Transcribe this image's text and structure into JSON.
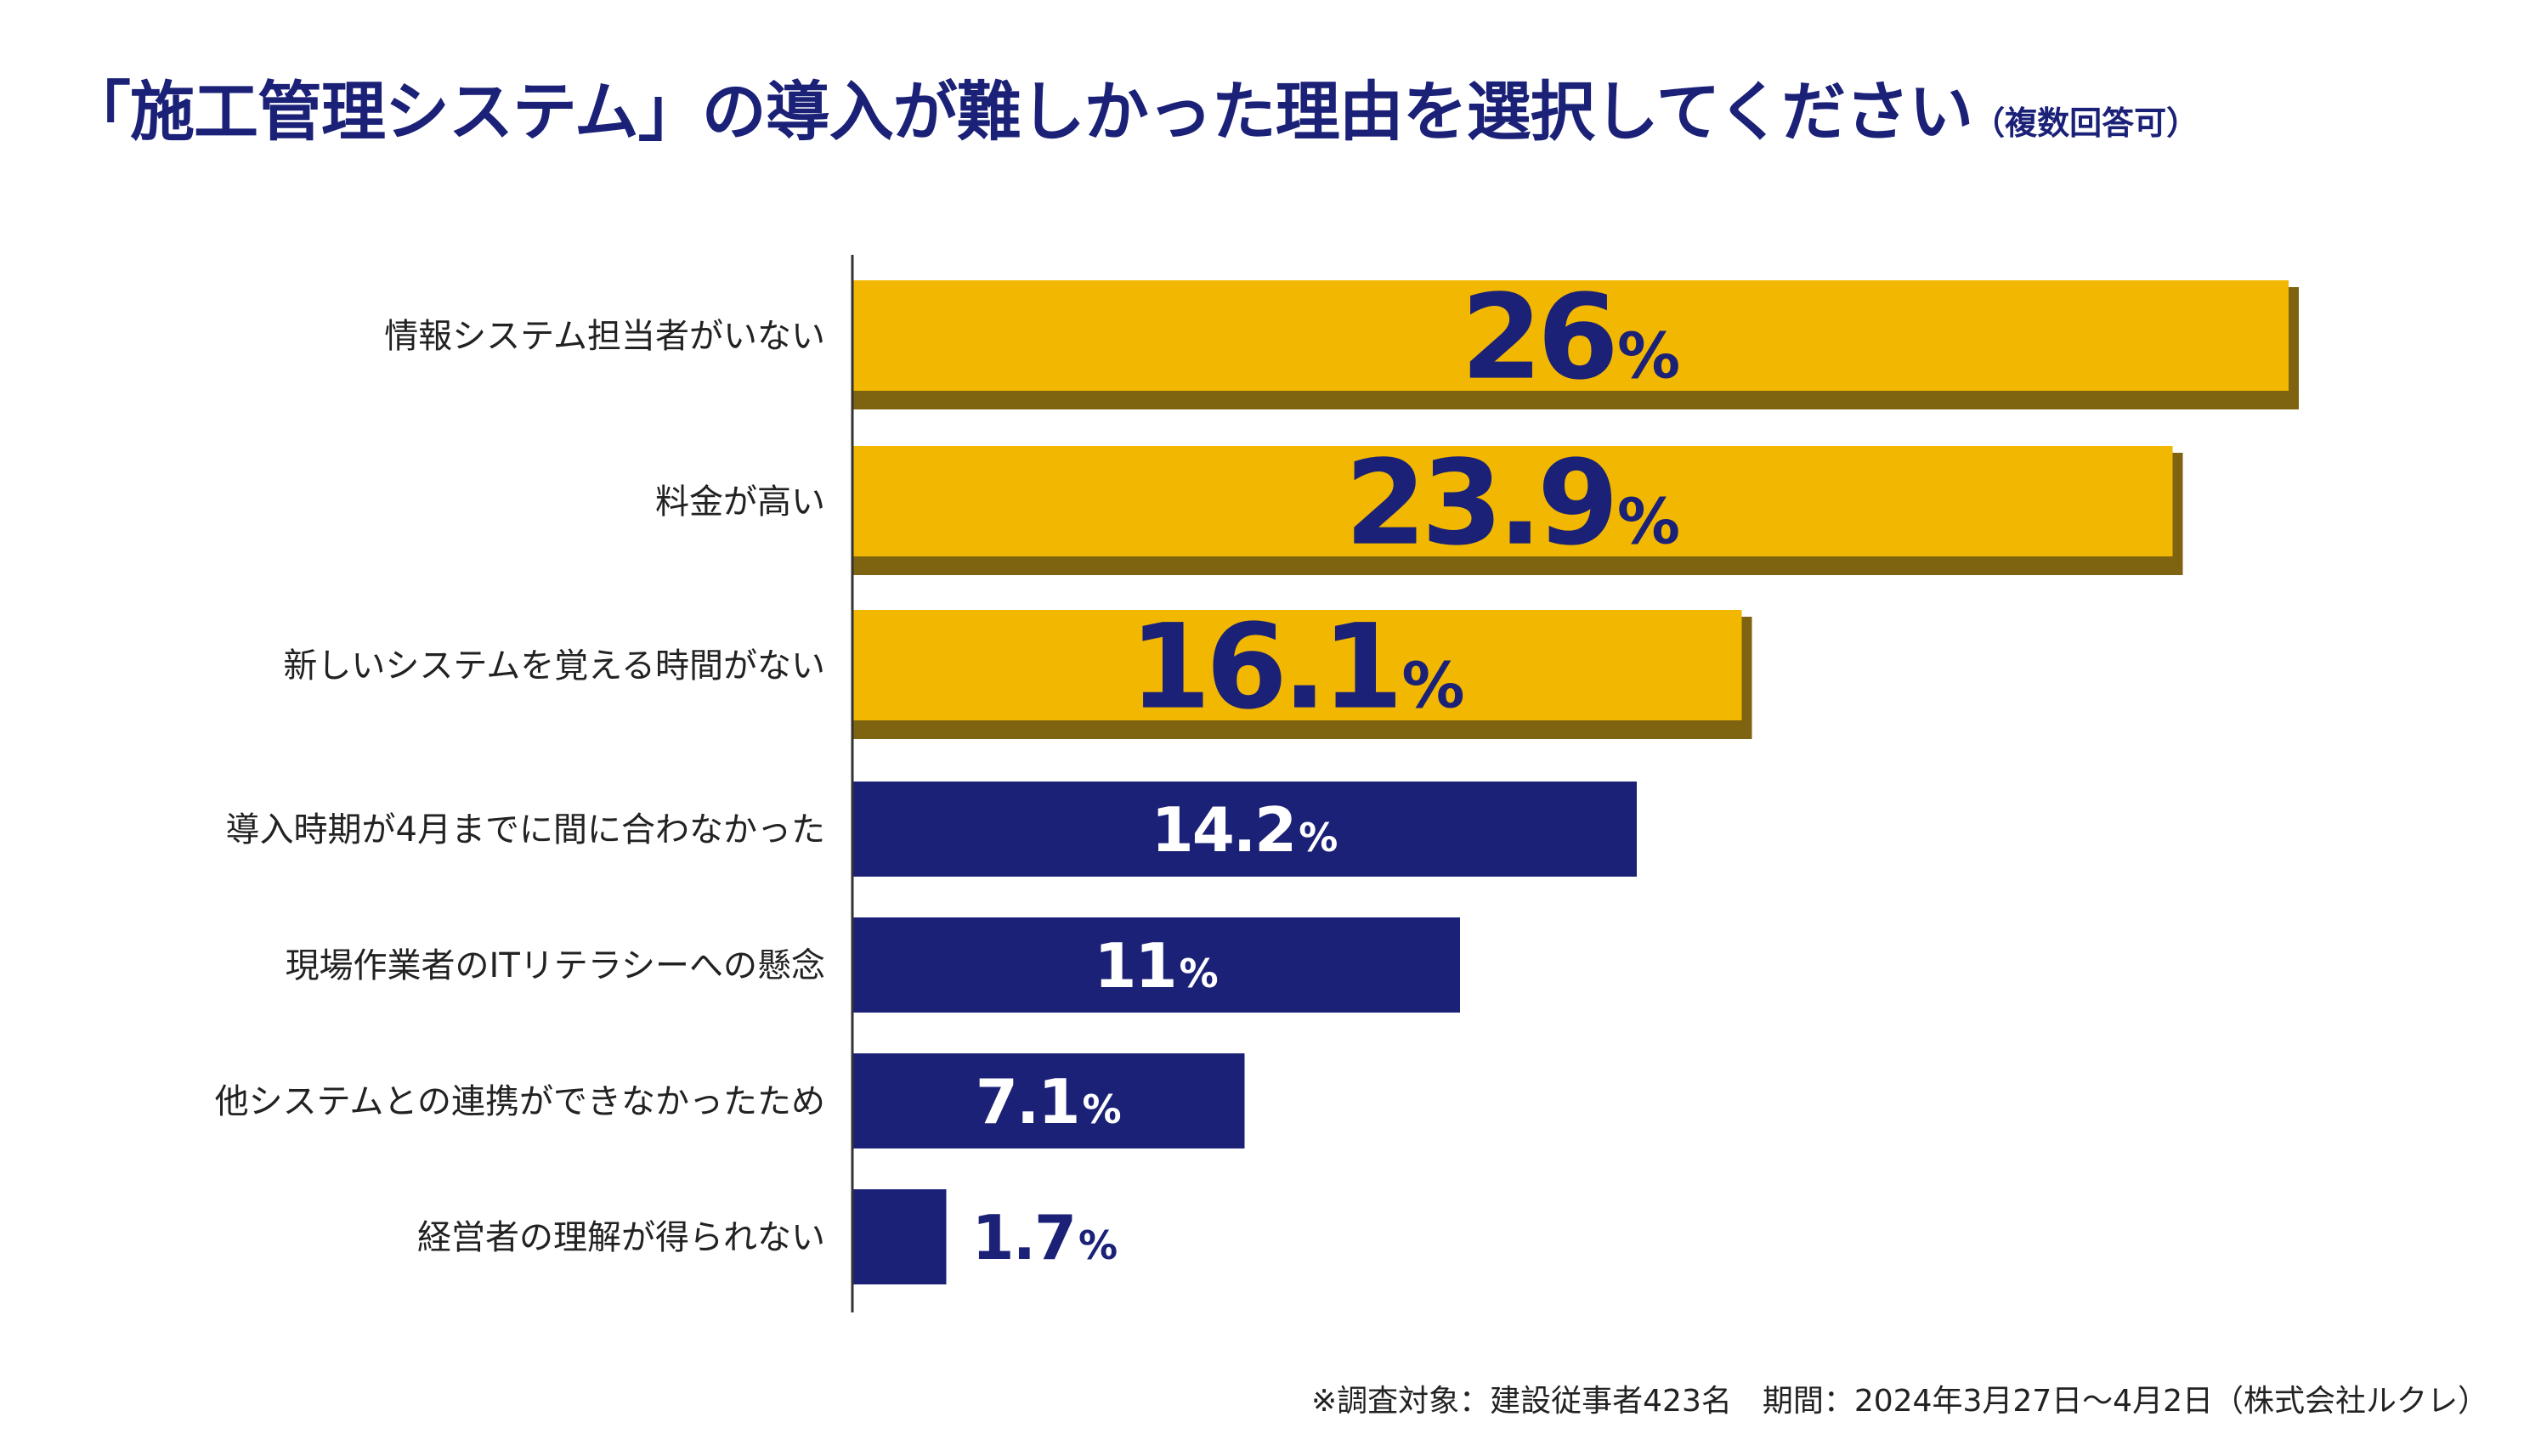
{
  "title": "「施工管理システム」の導入が難しかった理由を選択してください",
  "subtitle": "（複数回答可）",
  "footnote": "※調査対象：建設従事者423名　期間：2024年3月27日〜4月2日（株式会社ルクレ）",
  "colors": {
    "highlight": "#f2b700",
    "highlight_shadow": "#7e6410",
    "normal": "#1b2177",
    "label_text": "#222222",
    "title_text": "#1b2177",
    "axis": "#333333"
  },
  "chart_data": {
    "type": "bar",
    "orientation": "horizontal",
    "categories": [
      "情報システム担当者がいない",
      "料金が高い",
      "新しいシステムを覚える時間がない",
      "導入時期が4月までに間に合わなかった",
      "現場作業者のITリテラシーへの懸念",
      "他システムとの連携ができなかったため",
      "経営者の理解が得られない"
    ],
    "values": [
      26,
      23.9,
      16.1,
      14.2,
      11,
      7.1,
      1.7
    ],
    "value_labels": [
      "26",
      "23.9",
      "16.1",
      "14.2",
      "11",
      "7.1",
      "1.7"
    ],
    "unit": "%",
    "highlighted": [
      true,
      true,
      true,
      false,
      false,
      false,
      false
    ],
    "xlim": [
      0,
      30
    ],
    "grid": false,
    "legend": "none"
  }
}
